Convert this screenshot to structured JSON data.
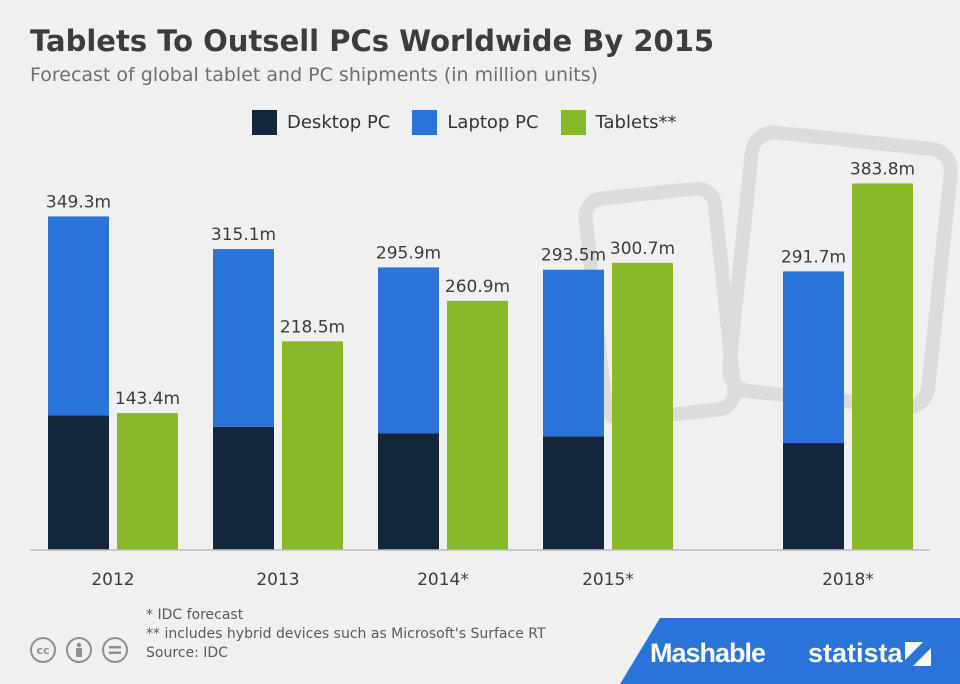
{
  "title": "Tablets To Outsell PCs Worldwide By 2015",
  "subtitle": "Forecast of global tablet and PC shipments (in million units)",
  "colors": {
    "desktop": "#13263b",
    "laptop": "#2a74d9",
    "tablets": "#88b928",
    "brand": "#2a74d9"
  },
  "chart_data": {
    "type": "bar",
    "stacked_group": [
      "Desktop PC",
      "Laptop PC"
    ],
    "categories": [
      "2012",
      "2013",
      "2014*",
      "2015*",
      "2018*"
    ],
    "series": [
      {
        "name": "Desktop PC",
        "values": [
          141.0,
          129.0,
          122.0,
          119.0,
          112.0
        ]
      },
      {
        "name": "Laptop PC",
        "values": [
          208.3,
          186.1,
          173.9,
          174.5,
          179.7
        ]
      },
      {
        "name": "Tablets**",
        "values": [
          143.4,
          218.5,
          260.9,
          300.7,
          383.8
        ]
      }
    ],
    "pc_total_labels": [
      "349.3m",
      "315.1m",
      "295.9m",
      "293.5m",
      "291.7m"
    ],
    "tablet_labels": [
      "143.4m",
      "218.5m",
      "260.9m",
      "300.7m",
      "383.8m"
    ],
    "ylim": [
      0,
      400
    ],
    "legend_position": "top"
  },
  "footnotes": {
    "forecast": "* IDC forecast",
    "hybrid": "** includes hybrid devices such as Microsoft's Surface RT",
    "source": "Source: IDC"
  },
  "brand": {
    "mashable": "Mashable",
    "statista": "statista"
  },
  "icons": [
    "cc-icon",
    "attribution-icon",
    "no-derivatives-icon"
  ]
}
